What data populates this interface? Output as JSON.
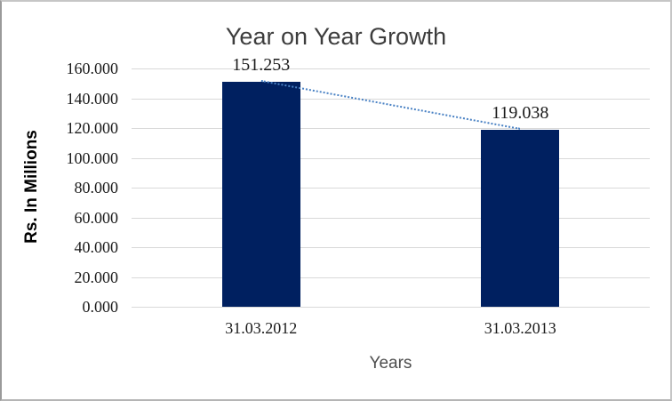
{
  "frame": {
    "background": "#ffffff",
    "border_color": "#c6c6c6"
  },
  "chart_data": {
    "type": "bar",
    "title": "Year on Year Growth",
    "categories": [
      "31.03.2012",
      "31.03.2013"
    ],
    "series": [
      {
        "name": "Rs. In Millions",
        "values": [
          151.253,
          119.038
        ],
        "color": "#002060"
      }
    ],
    "data_labels": [
      "151.253",
      "119.038"
    ],
    "xlabel": "Years",
    "ylabel": "Rs. In Millions",
    "ylim": [
      0,
      160
    ],
    "ytick_step": 20,
    "ytick_labels": [
      "0.000",
      "20.000",
      "40.000",
      "60.000",
      "80.000",
      "100.000",
      "120.000",
      "140.000",
      "160.000"
    ],
    "grid": true,
    "gridline_color": "#d9d9d9",
    "legend": "none",
    "trendline": {
      "type": "linear",
      "style": "dotted",
      "color": "#4a82c4",
      "from_value": 151.253,
      "to_value": 119.038
    }
  }
}
